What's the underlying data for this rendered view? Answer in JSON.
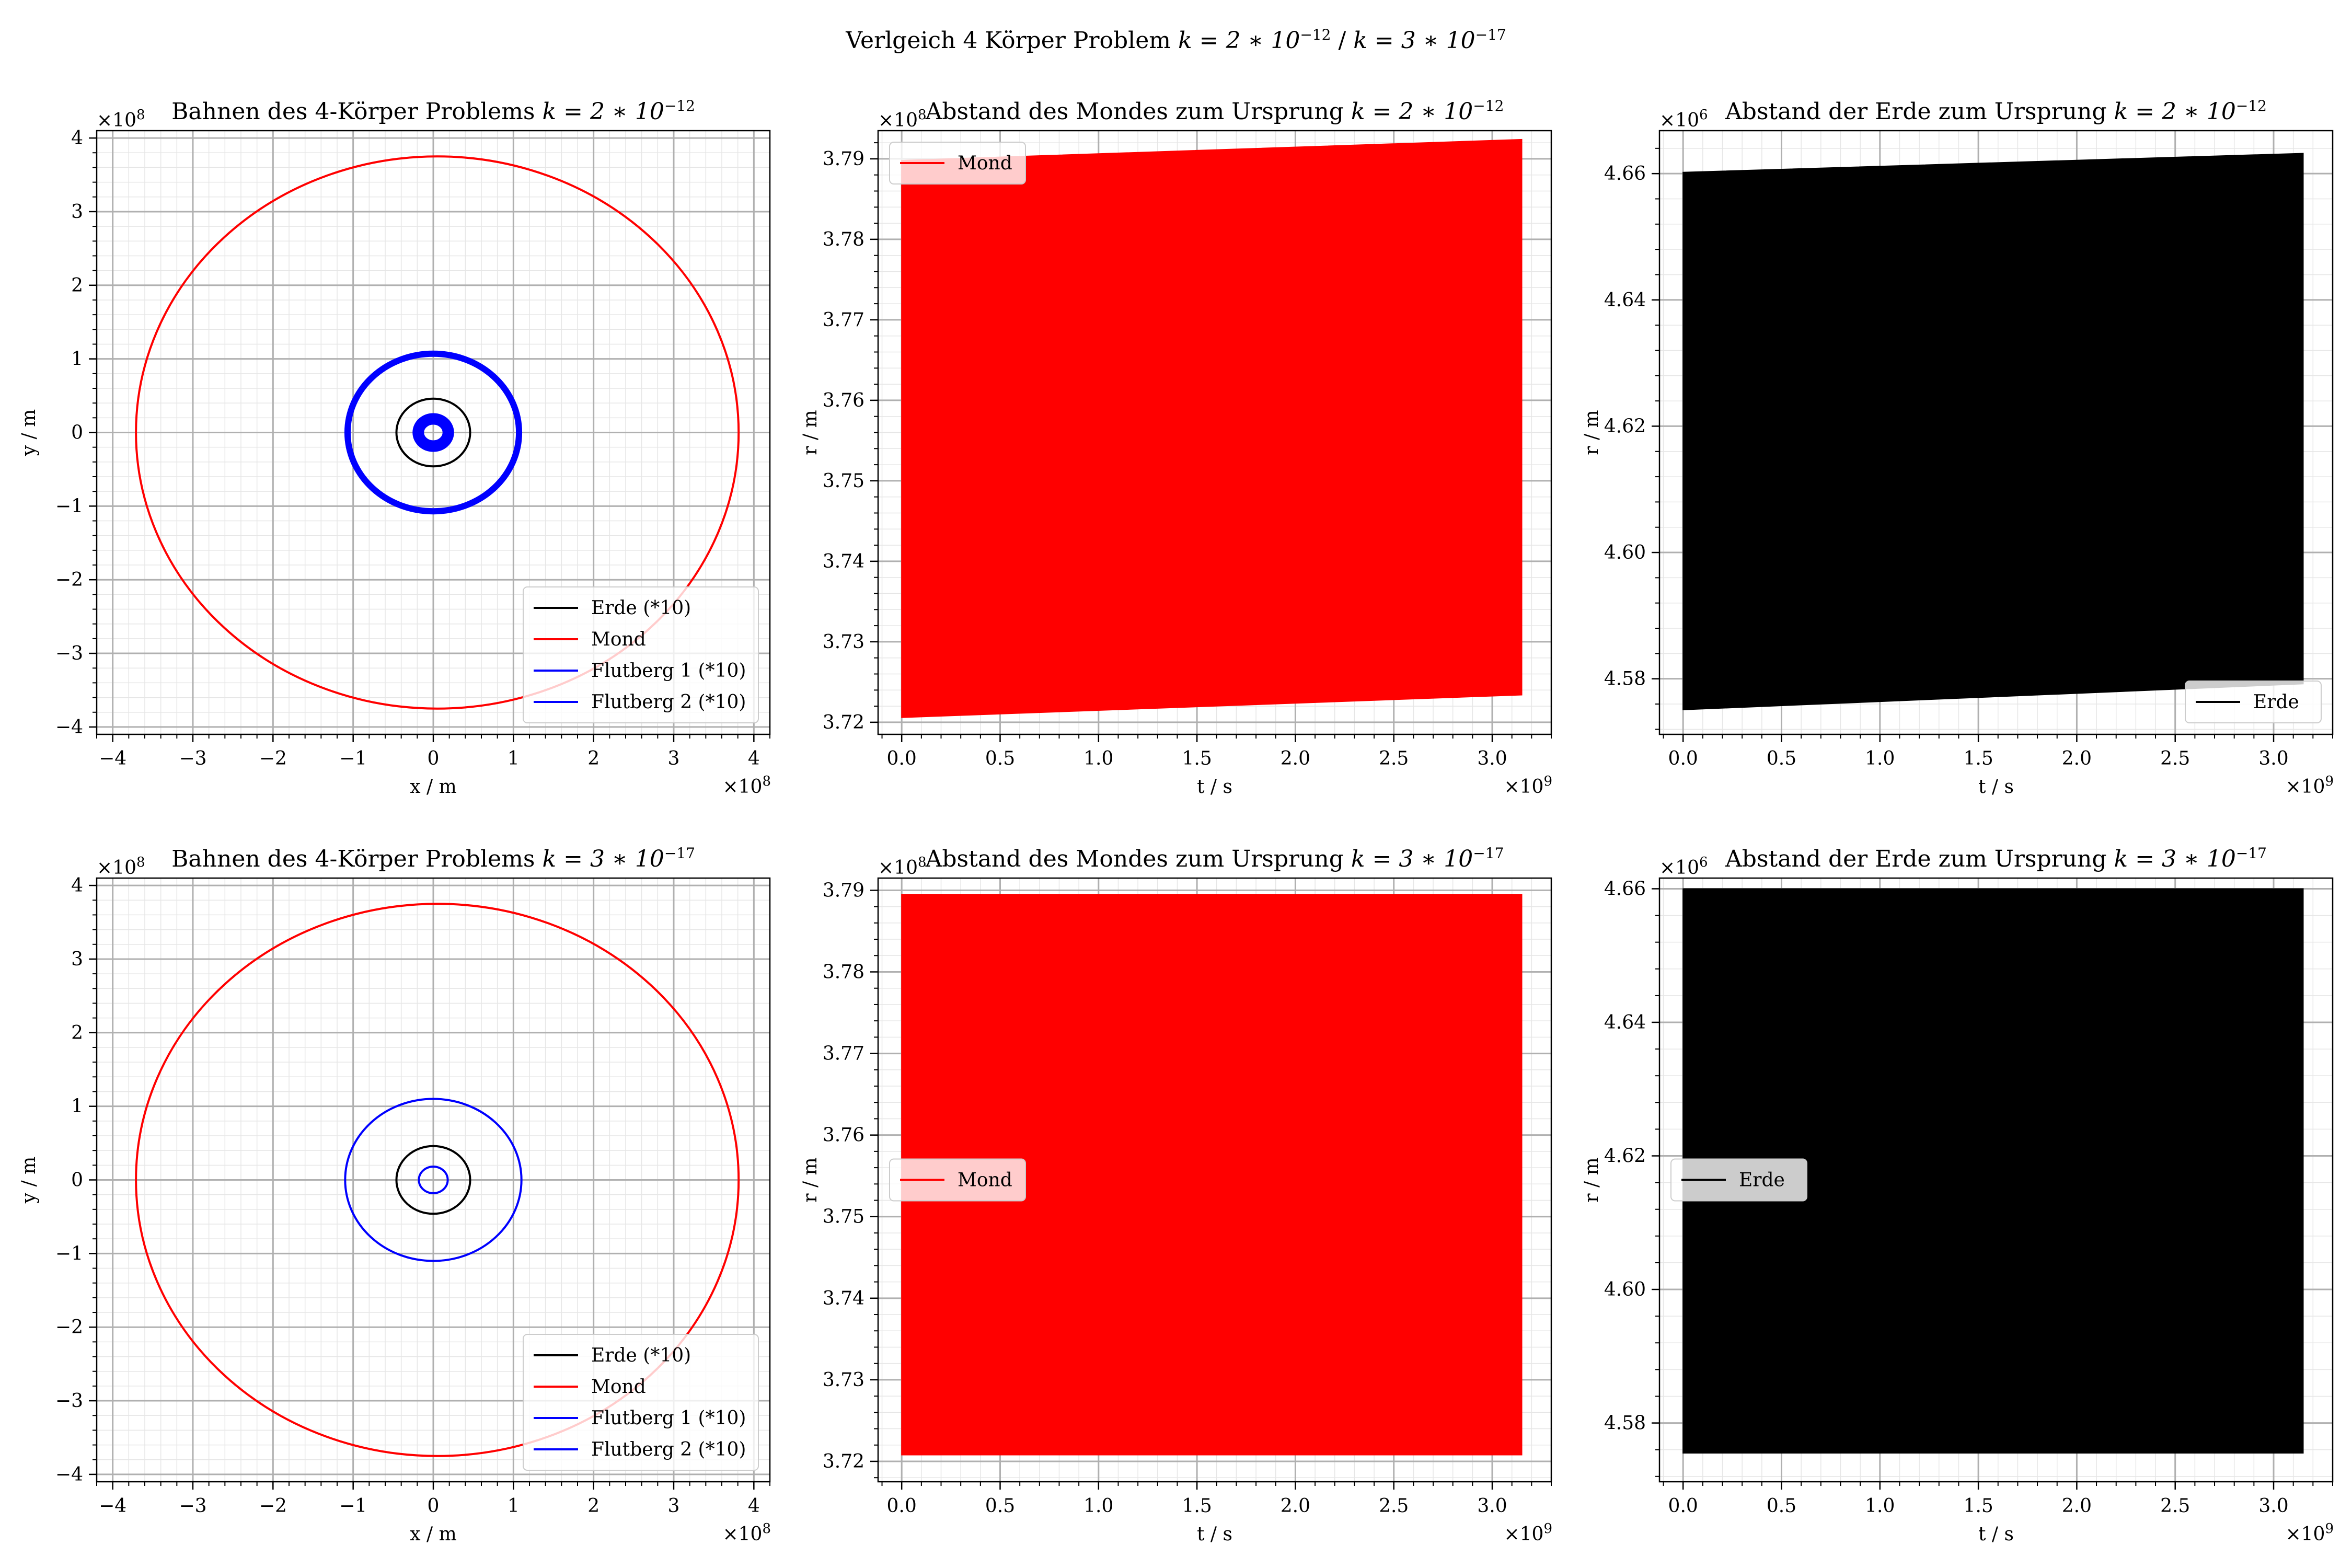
{
  "figure": {
    "suptitle_pre": "Verlgeich 4 Körper Problem ",
    "suptitle_k1": "k = 2 ∗ 10",
    "suptitle_exp1": "−12",
    "suptitle_sep": " / ",
    "suptitle_k2": "k = 3 ∗ 10",
    "suptitle_exp2": "−17"
  },
  "colors": {
    "erde": "#000000",
    "mond": "#ff0000",
    "flutberg": "#0000ff",
    "grid_major": "#b0b0b0",
    "grid_minor": "#e6e6e6"
  },
  "chart_data": [
    {
      "type": "line",
      "subtype": "orbit",
      "title_pre": "Bahnen des 4-Körper Problems ",
      "title_k": "k = 2 ∗ 10",
      "title_exp": "−12",
      "xlabel": "x / m",
      "ylabel": "y / m",
      "x_offset_text": "×10",
      "x_offset_exp": "8",
      "y_offset_text": "×10",
      "y_offset_exp": "8",
      "xlim": [
        -4.2,
        4.2
      ],
      "ylim": [
        -4.1,
        4.1
      ],
      "xticks": [
        -4,
        -3,
        -2,
        -1,
        0,
        1,
        2,
        3,
        4
      ],
      "yticks": [
        -4,
        -3,
        -2,
        -1,
        0,
        1,
        2,
        3,
        4
      ],
      "grid": true,
      "legend_position": "bottom-right",
      "series": [
        {
          "name": "Erde (*10)",
          "color": "#000000",
          "center": [
            0,
            0
          ],
          "rx": 0.46,
          "ry": 0.46,
          "thickness": "thin"
        },
        {
          "name": "Mond",
          "color": "#ff0000",
          "center": [
            0.05,
            0
          ],
          "rx": 3.76,
          "ry": 3.75,
          "thickness": "thin"
        },
        {
          "name": "Flutberg 1 (*10)",
          "color": "#0000ff",
          "center": [
            0,
            0
          ],
          "rx": 1.07,
          "ry": 1.07,
          "thickness": "thick"
        },
        {
          "name": "Flutberg 2 (*10)",
          "color": "#0000ff",
          "center": [
            0,
            0
          ],
          "rx": 0.22,
          "ry": 0.22,
          "thickness": "thick"
        }
      ]
    },
    {
      "type": "area",
      "subtype": "band",
      "title_pre": "Abstand des Mondes zum Ursprung ",
      "title_k": "k = 2 ∗ 10",
      "title_exp": "−12",
      "xlabel": "t / s",
      "ylabel": "r / m",
      "x_offset_text": "×10",
      "x_offset_exp": "9",
      "y_offset_text": "×10",
      "y_offset_exp": "8",
      "xlim": [
        -0.12,
        3.3
      ],
      "ylim": [
        3.7185,
        3.7935
      ],
      "xticks": [
        0.0,
        0.5,
        1.0,
        1.5,
        2.0,
        2.5,
        3.0
      ],
      "yticks": [
        3.72,
        3.73,
        3.74,
        3.75,
        3.76,
        3.77,
        3.78,
        3.79
      ],
      "grid": true,
      "legend_position": "upper left",
      "series": [
        {
          "name": "Mond",
          "color": "#ff0000",
          "x": [
            0.0,
            3.15
          ],
          "upper": [
            3.7898,
            3.7924
          ],
          "lower": [
            3.7206,
            3.7234
          ]
        }
      ]
    },
    {
      "type": "area",
      "subtype": "band",
      "title_pre": "Abstand der Erde zum Ursprung ",
      "title_k": "k = 2 ∗ 10",
      "title_exp": "−12",
      "xlabel": "t / s",
      "ylabel": "r / m",
      "x_offset_text": "×10",
      "x_offset_exp": "9",
      "y_offset_text": "×10",
      "y_offset_exp": "6",
      "xlim": [
        -0.12,
        3.3
      ],
      "ylim": [
        4.5712,
        4.6668
      ],
      "xticks": [
        0.0,
        0.5,
        1.0,
        1.5,
        2.0,
        2.5,
        3.0
      ],
      "yticks": [
        4.58,
        4.6,
        4.62,
        4.64,
        4.66
      ],
      "grid": true,
      "legend_position": "lower right",
      "series": [
        {
          "name": "Erde",
          "color": "#000000",
          "x": [
            0.0,
            3.15
          ],
          "upper": [
            4.6602,
            4.6632
          ],
          "lower": [
            4.5751,
            4.5792
          ]
        }
      ]
    },
    {
      "type": "line",
      "subtype": "orbit",
      "title_pre": "Bahnen des 4-Körper Problems ",
      "title_k": "k = 3 ∗ 10",
      "title_exp": "−17",
      "xlabel": "x / m",
      "ylabel": "y / m",
      "x_offset_text": "×10",
      "x_offset_exp": "8",
      "y_offset_text": "×10",
      "y_offset_exp": "8",
      "xlim": [
        -4.2,
        4.2
      ],
      "ylim": [
        -4.1,
        4.1
      ],
      "xticks": [
        -4,
        -3,
        -2,
        -1,
        0,
        1,
        2,
        3,
        4
      ],
      "yticks": [
        -4,
        -3,
        -2,
        -1,
        0,
        1,
        2,
        3,
        4
      ],
      "grid": true,
      "legend_position": "bottom-right",
      "series": [
        {
          "name": "Erde (*10)",
          "color": "#000000",
          "center": [
            0,
            0
          ],
          "rx": 0.46,
          "ry": 0.46,
          "thickness": "thin"
        },
        {
          "name": "Mond",
          "color": "#ff0000",
          "center": [
            0.05,
            0
          ],
          "rx": 3.76,
          "ry": 3.75,
          "thickness": "thin"
        },
        {
          "name": "Flutberg 1 (*10)",
          "color": "#0000ff",
          "center": [
            0,
            0
          ],
          "rx": 1.1,
          "ry": 1.1,
          "thickness": "thin"
        },
        {
          "name": "Flutberg 2 (*10)",
          "color": "#0000ff",
          "center": [
            0,
            0
          ],
          "rx": 0.18,
          "ry": 0.18,
          "thickness": "thin"
        }
      ]
    },
    {
      "type": "area",
      "subtype": "band",
      "title_pre": "Abstand des Mondes zum Ursprung ",
      "title_k": "k = 3 ∗ 10",
      "title_exp": "−17",
      "xlabel": "t / s",
      "ylabel": "r / m",
      "x_offset_text": "×10",
      "x_offset_exp": "9",
      "y_offset_text": "×10",
      "y_offset_exp": "8",
      "xlim": [
        -0.12,
        3.3
      ],
      "ylim": [
        3.7175,
        3.7915
      ],
      "xticks": [
        0.0,
        0.5,
        1.0,
        1.5,
        2.0,
        2.5,
        3.0
      ],
      "yticks": [
        3.72,
        3.73,
        3.74,
        3.75,
        3.76,
        3.77,
        3.78,
        3.79
      ],
      "grid": true,
      "legend_position": "center left",
      "series": [
        {
          "name": "Mond",
          "color": "#ff0000",
          "x": [
            0.0,
            3.15
          ],
          "upper": [
            3.7895,
            3.7895
          ],
          "lower": [
            3.7208,
            3.7208
          ]
        }
      ]
    },
    {
      "type": "area",
      "subtype": "band",
      "title_pre": "Abstand der Erde zum Ursprung ",
      "title_k": "k = 3 ∗ 10",
      "title_exp": "−17",
      "xlabel": "t / s",
      "ylabel": "r / m",
      "x_offset_text": "×10",
      "x_offset_exp": "9",
      "y_offset_text": "×10",
      "y_offset_exp": "6",
      "xlim": [
        -0.12,
        3.3
      ],
      "ylim": [
        4.5712,
        4.6616
      ],
      "xticks": [
        0.0,
        0.5,
        1.0,
        1.5,
        2.0,
        2.5,
        3.0
      ],
      "yticks": [
        4.58,
        4.6,
        4.62,
        4.64,
        4.66
      ],
      "grid": true,
      "legend_position": "center left",
      "series": [
        {
          "name": "Erde",
          "color": "#000000",
          "x": [
            0.0,
            3.15
          ],
          "upper": [
            4.66,
            4.66
          ],
          "lower": [
            4.5755,
            4.5755
          ]
        }
      ]
    }
  ]
}
